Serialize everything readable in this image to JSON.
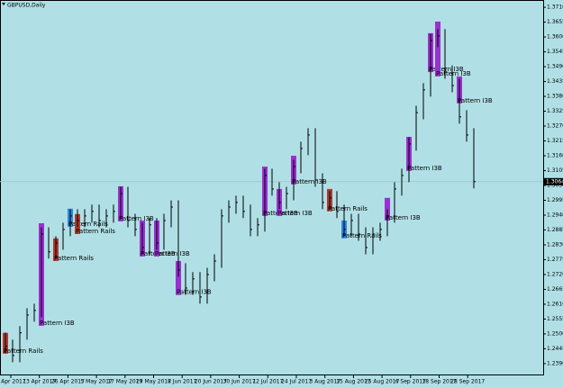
{
  "chart_data": {
    "type": "ohlc",
    "title": "GBPUSD,Daily",
    "color": "#000000",
    "background": "#b0e0e6",
    "ylim": [
      1.2353,
      1.3737
    ],
    "yticks": [
      {
        "value": 1.371,
        "label": "1.3710"
      },
      1.3655,
      {
        "value": 1.36,
        "label": "1.3600"
      },
      1.3545,
      {
        "value": 1.349,
        "label": "1.3490"
      },
      1.3435,
      {
        "value": 1.338,
        "label": "1.3380"
      },
      1.3325,
      {
        "value": 1.327,
        "label": "1.3270"
      },
      1.3215,
      {
        "value": 1.316,
        "label": "1.3160"
      },
      1.3105,
      {
        "value": 1.305,
        "label": "1.3050"
      },
      1.2995,
      {
        "value": 1.294,
        "label": "1.2940"
      },
      1.2885,
      {
        "value": 1.283,
        "label": "1.2830"
      },
      1.2775,
      {
        "value": 1.272,
        "label": "1.2720"
      },
      1.2665,
      {
        "value": 1.261,
        "label": "1.2610"
      },
      1.2555,
      {
        "value": 1.25,
        "label": "1.2500"
      },
      1.2445,
      {
        "value": 1.239,
        "label": "1.2390"
      }
    ],
    "xlabels": [
      "3 Apr 2017",
      "13 Apr 2017",
      "26 Apr 2017",
      "5 May 2017",
      "17 May 2017",
      "29 May 2017",
      "8 Jun 2017",
      "20 Jun 2017",
      "30 Jun 2017",
      "12 Jul 2017",
      "24 Jul 2017",
      "3 Aug 2017",
      "15 Aug 2017",
      "25 Aug 2017",
      "6 Sep 2017",
      "18 Sep 2017",
      "28 Sep 2017"
    ],
    "last": 1.3064,
    "high": [
      1.2505,
      1.2479,
      1.2529,
      1.2595,
      1.2612,
      1.2895,
      1.2895,
      1.2862,
      1.2912,
      1.2962,
      1.2962,
      1.2962,
      1.2979,
      1.2979,
      1.2962,
      1.2979,
      1.3045,
      1.3045,
      1.2945,
      1.2912,
      1.2929,
      1.2929,
      1.2945,
      1.2995,
      1.2995,
      1.2762,
      1.2729,
      1.2729,
      1.2745,
      1.2795,
      1.2962,
      1.2995,
      1.3012,
      1.3012,
      1.2979,
      1.2929,
      1.3112,
      1.3112,
      1.3062,
      1.3045,
      1.3145,
      1.3212,
      1.3262,
      1.3262,
      1.3095,
      1.3029,
      1.3029,
      1.2979,
      1.2945,
      1.2945,
      1.2895,
      1.2895,
      1.2912,
      1.2962,
      1.3062,
      1.3112,
      1.3229,
      1.3345,
      1.3429,
      1.3612,
      1.3629,
      1.3629,
      1.3495,
      1.3445,
      1.3329,
      1.3262
    ],
    "low": [
      1.2429,
      1.2395,
      1.2395,
      1.2479,
      1.2545,
      1.2562,
      1.2779,
      1.2779,
      1.2812,
      1.2862,
      1.2895,
      1.2895,
      1.2912,
      1.2895,
      1.2895,
      1.2912,
      1.2929,
      1.2895,
      1.2862,
      1.2795,
      1.2795,
      1.2812,
      1.2812,
      1.2895,
      1.2712,
      1.2645,
      1.2645,
      1.2612,
      1.2612,
      1.2695,
      1.2745,
      1.2912,
      1.2945,
      1.2929,
      1.2862,
      1.2862,
      1.2879,
      1.3012,
      1.2962,
      1.2962,
      1.2995,
      1.3095,
      1.3162,
      1.3045,
      1.2962,
      1.2962,
      1.2929,
      1.2862,
      1.2862,
      1.2845,
      1.2795,
      1.2795,
      1.2845,
      1.2862,
      1.2912,
      1.3012,
      1.3062,
      1.3179,
      1.3295,
      1.3379,
      1.3562,
      1.3445,
      1.3395,
      1.3279,
      1.3212,
      1.3039
    ],
    "close": [
      1.2454,
      1.242,
      1.2504,
      1.257,
      1.2587,
      1.287,
      1.2804,
      1.2837,
      1.2887,
      1.2937,
      1.292,
      1.2937,
      1.2954,
      1.292,
      1.2937,
      1.2954,
      1.302,
      1.292,
      1.2887,
      1.282,
      1.2904,
      1.2837,
      1.292,
      1.297,
      1.2737,
      1.267,
      1.2704,
      1.2637,
      1.272,
      1.277,
      1.2937,
      1.297,
      1.2987,
      1.2954,
      1.2887,
      1.2904,
      1.3087,
      1.3037,
      1.2987,
      1.302,
      1.312,
      1.3187,
      1.3237,
      1.307,
      1.2987,
      1.3004,
      1.2954,
      1.2887,
      1.292,
      1.287,
      1.282,
      1.287,
      1.2887,
      1.2937,
      1.3037,
      1.3087,
      1.3204,
      1.332,
      1.3404,
      1.3587,
      1.3604,
      1.347,
      1.342,
      1.3304,
      1.3237,
      1.3064
    ],
    "annotations": [
      {
        "label": "Pattern Rails",
        "color": "#b03a2e",
        "bar": 0,
        "from": 1.2504,
        "to": 1.2427
      },
      {
        "label": "Pattern I3B",
        "color": "#9b30d0",
        "bar": 5,
        "from": 1.291,
        "to": 1.253
      },
      {
        "label": "Pattern Rails",
        "color": "#b03a2e",
        "bar": 7,
        "from": 1.2854,
        "to": 1.277
      },
      {
        "label": "Pattern Rails",
        "color": "#2e86de",
        "bar": 9,
        "from": 1.2964,
        "to": 1.2897
      },
      {
        "label": "Pattern Rails",
        "color": "#b03a2e",
        "bar": 10,
        "from": 1.2944,
        "to": 1.287
      },
      {
        "label": "Pattern I3B",
        "color": "#9b30d0",
        "bar": 16,
        "from": 1.3047,
        "to": 1.2917
      },
      {
        "label": "Pattern I3B",
        "color": "#9b30d0",
        "bar": 19,
        "from": 1.292,
        "to": 1.2787
      },
      {
        "label": "Pattern I3B",
        "color": "#9b30d0",
        "bar": 21,
        "from": 1.292,
        "to": 1.2787
      },
      {
        "label": "Pattern I3B",
        "color": "#9b30d0",
        "bar": 24,
        "from": 1.277,
        "to": 1.2644
      },
      {
        "label": "Pattern I3B",
        "color": "#9b30d0",
        "bar": 36,
        "from": 1.312,
        "to": 1.2937
      },
      {
        "label": "Pattern I3B",
        "color": "#9b30d0",
        "bar": 38,
        "from": 1.3037,
        "to": 1.2937
      },
      {
        "label": "Pattern I3B",
        "color": "#9b30d0",
        "bar": 40,
        "from": 1.316,
        "to": 1.3054
      },
      {
        "label": "Pattern Rails",
        "color": "#b03a2e",
        "bar": 45,
        "from": 1.3037,
        "to": 1.2954
      },
      {
        "label": "Pattern Rails",
        "color": "#2e86de",
        "bar": 47,
        "from": 1.292,
        "to": 1.2854
      },
      {
        "label": "Pattern I3B",
        "color": "#9b30d0",
        "bar": 53,
        "from": 1.3004,
        "to": 1.292
      },
      {
        "label": "Pattern I3B",
        "color": "#9b30d0",
        "bar": 56,
        "from": 1.323,
        "to": 1.3104
      },
      {
        "label": "Pattern I3B",
        "color": "#9b30d0",
        "bar": 59,
        "from": 1.3614,
        "to": 1.347
      },
      {
        "label": "Pattern I3B",
        "color": "#9b30d0",
        "bar": 60,
        "from": 1.3657,
        "to": 1.3454
      },
      {
        "label": "Pattern I3B",
        "color": "#9b30d0",
        "bar": 63,
        "from": 1.3454,
        "to": 1.3354
      }
    ]
  }
}
